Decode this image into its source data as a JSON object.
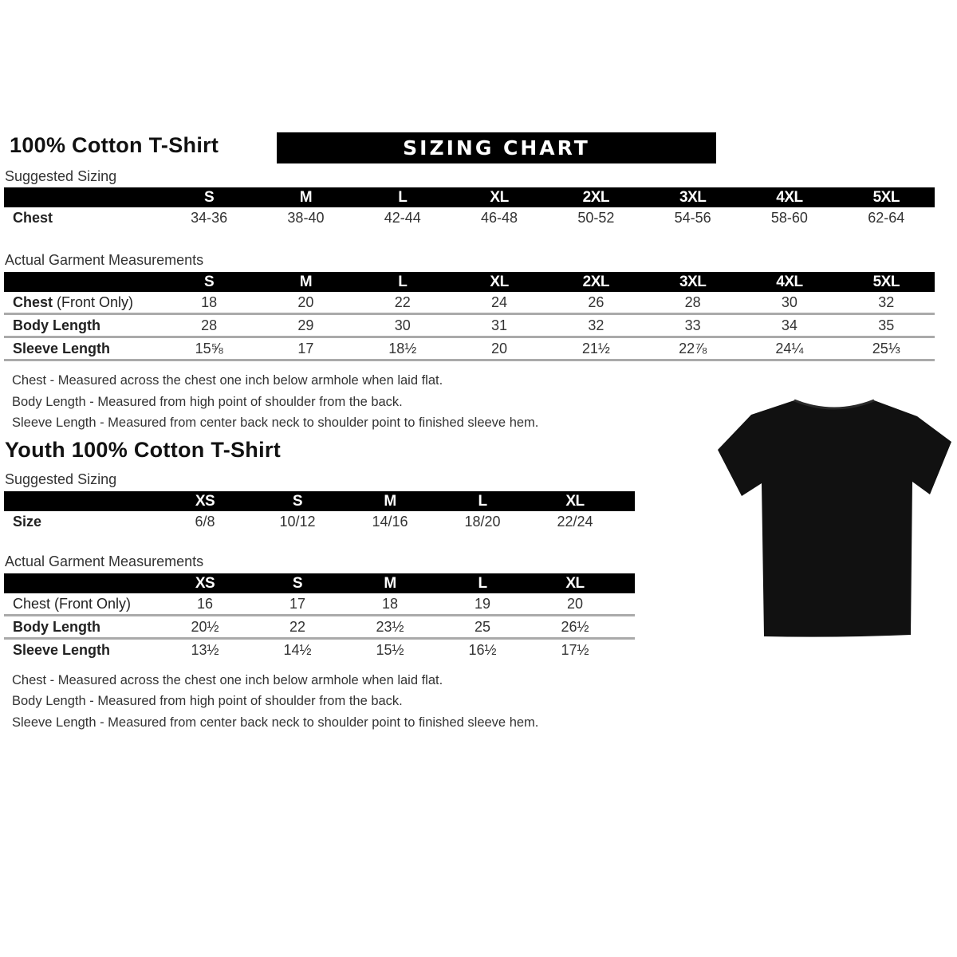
{
  "adult": {
    "title": "100% Cotton T-Shirt",
    "banner": "SIZING CHART",
    "suggested": {
      "label": "Suggested Sizing",
      "sizes": [
        "S",
        "M",
        "L",
        "XL",
        "2XL",
        "3XL",
        "4XL",
        "5XL"
      ],
      "rows": [
        {
          "label": "Chest",
          "values": [
            "34-36",
            "38-40",
            "42-44",
            "46-48",
            "50-52",
            "54-56",
            "58-60",
            "62-64"
          ]
        }
      ]
    },
    "actual": {
      "label": "Actual Garment Measurements",
      "sizes": [
        "S",
        "M",
        "L",
        "XL",
        "2XL",
        "3XL",
        "4XL",
        "5XL"
      ],
      "rows": [
        {
          "label": "Chest",
          "label_suffix": " (Front Only)",
          "values": [
            "18",
            "20",
            "22",
            "24",
            "26",
            "28",
            "30",
            "32"
          ]
        },
        {
          "label": "Body Length",
          "label_suffix": "",
          "values": [
            "28",
            "29",
            "30",
            "31",
            "32",
            "33",
            "34",
            "35"
          ]
        },
        {
          "label": "Sleeve Length",
          "label_suffix": "",
          "values": [
            "15⅝",
            "17",
            "18½",
            "20",
            "21½",
            "22⅞",
            "24¼",
            "25⅓"
          ]
        }
      ]
    },
    "notes": [
      "Chest - Measured across the chest one inch below armhole when laid flat.",
      "Body Length - Measured from high point of shoulder from the back.",
      "Sleeve Length - Measured from center back neck to shoulder point to finished sleeve hem."
    ]
  },
  "youth": {
    "title": "Youth 100% Cotton T-Shirt",
    "suggested": {
      "label": "Suggested Sizing",
      "sizes": [
        "XS",
        "S",
        "M",
        "L",
        "XL"
      ],
      "rows": [
        {
          "label": "Size",
          "values": [
            "6/8",
            "10/12",
            "14/16",
            "18/20",
            "22/24"
          ]
        }
      ]
    },
    "actual": {
      "label": "Actual Garment Measurements",
      "sizes": [
        "XS",
        "S",
        "M",
        "L",
        "XL"
      ],
      "rows": [
        {
          "label": "Chest (Front Only)",
          "values": [
            "16",
            "17",
            "18",
            "19",
            "20"
          ]
        },
        {
          "label": "Body Length",
          "values": [
            "20½",
            "22",
            "23½",
            "25",
            "26½"
          ]
        },
        {
          "label": "Sleeve Length",
          "values": [
            "13½",
            "14½",
            "15½",
            "16½",
            "17½"
          ]
        }
      ]
    },
    "notes": [
      "Chest - Measured across the chest one inch below armhole when laid flat.",
      "Body Length - Measured from high point of shoulder from the back.",
      "Sleeve Length - Measured from center back neck to shoulder point to finished sleeve hem."
    ]
  },
  "image": {
    "icon": "black-tshirt-icon",
    "color": "#111111"
  }
}
